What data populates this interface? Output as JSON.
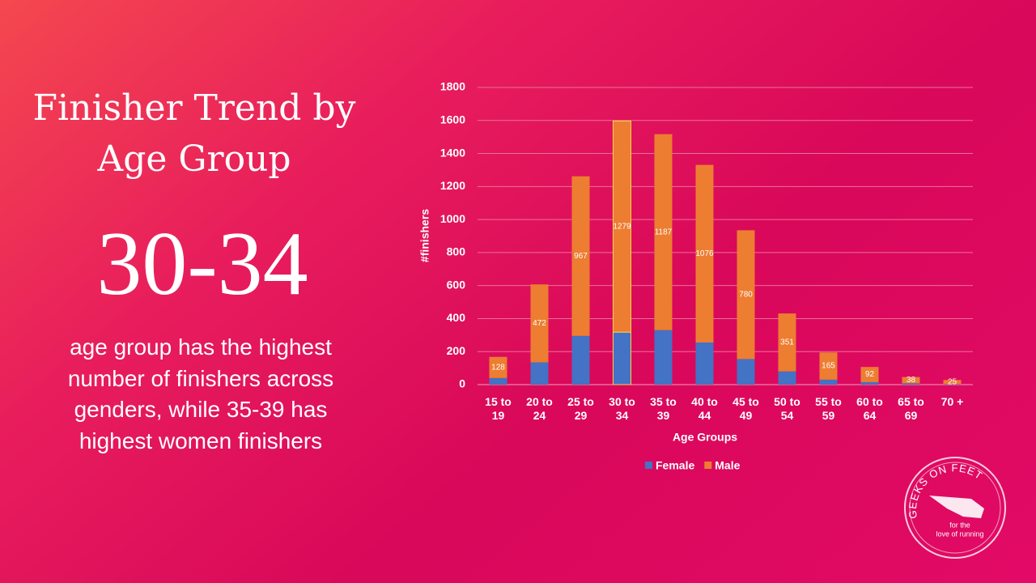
{
  "slide": {
    "title": "Finisher Trend by Age Group",
    "highlight": "30-34",
    "description": "age group has the highest number of finishers across genders, while 35-39 has highest women finishers",
    "logo": {
      "name": "GEEKS ON FEET",
      "tagline": [
        "for the",
        "love of running"
      ]
    }
  },
  "chart_data": {
    "type": "stacked_bar",
    "x_label": "Age Groups",
    "y_label": "#finishers",
    "categories": [
      "15 to 19",
      "20 to 24",
      "25 to 29",
      "30 to 34",
      "35 to 39",
      "40 to 44",
      "45 to 49",
      "50 to 54",
      "55 to 59",
      "60 to 64",
      "65 to 69",
      "70 +"
    ],
    "series": [
      {
        "name": "Female",
        "color": "#4472c4",
        "values": [
          40,
          135,
          295,
          318,
          330,
          255,
          155,
          80,
          30,
          15,
          8,
          3
        ]
      },
      {
        "name": "Male",
        "color": "#ed7d31",
        "values": [
          128,
          472,
          967,
          1279,
          1187,
          1076,
          780,
          351,
          165,
          92,
          38,
          25
        ],
        "data_labels": true
      }
    ],
    "ylim": [
      0,
      1800
    ],
    "yticks": [
      0,
      200,
      400,
      600,
      800,
      1000,
      1200,
      1400,
      1600,
      1800
    ],
    "grid": true,
    "legend": "bottom"
  }
}
